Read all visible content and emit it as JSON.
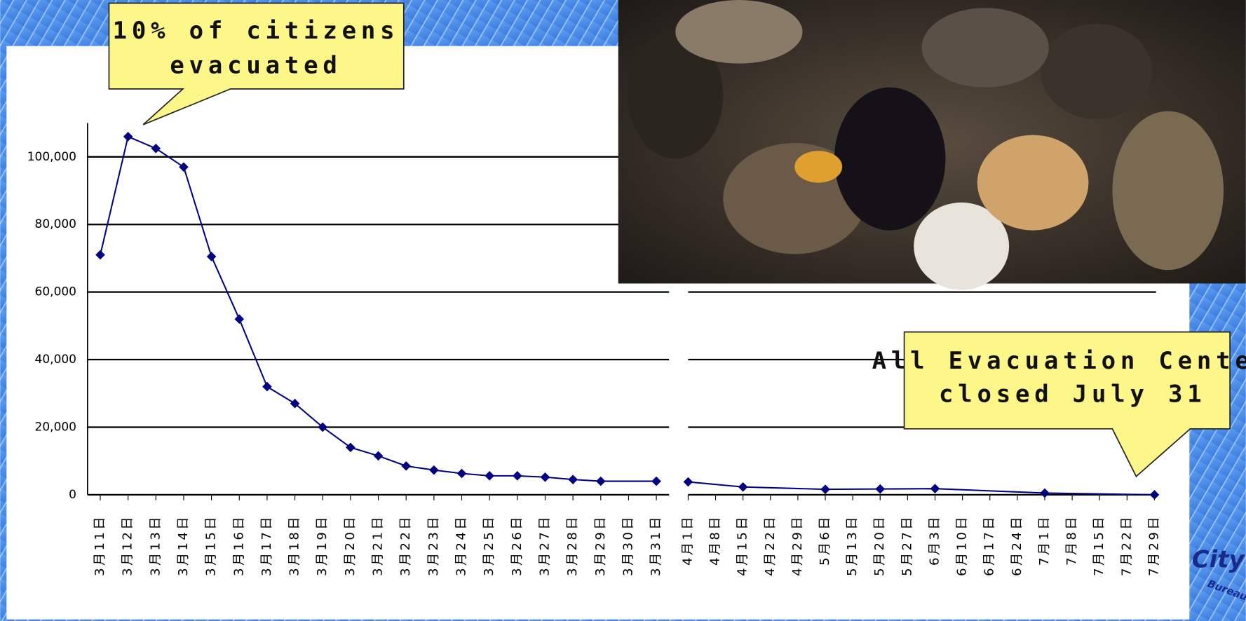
{
  "chart_data": [
    {
      "type": "line",
      "color": "#000080",
      "x": [
        11,
        12,
        13,
        14,
        15,
        16,
        17,
        18,
        19,
        20,
        21,
        22,
        23,
        24,
        25,
        26,
        27,
        28,
        29,
        31
      ],
      "values": [
        71000,
        106000,
        102500,
        97000,
        70500,
        52000,
        32000,
        27000,
        20000,
        14000,
        11500,
        8500,
        7300,
        6300,
        5600,
        5600,
        5200,
        4500,
        4000,
        4000
      ],
      "xlim": [
        11,
        31
      ],
      "xticks": [
        {
          "value": 11,
          "label": "3月11日"
        },
        {
          "value": 12,
          "label": "3月12日"
        },
        {
          "value": 13,
          "label": "3月13日"
        },
        {
          "value": 14,
          "label": "3月14日"
        },
        {
          "value": 15,
          "label": "3月15日"
        },
        {
          "value": 16,
          "label": "3月16日"
        },
        {
          "value": 17,
          "label": "3月17日"
        },
        {
          "value": 18,
          "label": "3月18日"
        },
        {
          "value": 19,
          "label": "3月19日"
        },
        {
          "value": 20,
          "label": "3月20日"
        },
        {
          "value": 21,
          "label": "3月21日"
        },
        {
          "value": 22,
          "label": "3月22日"
        },
        {
          "value": 23,
          "label": "3月23日"
        },
        {
          "value": 24,
          "label": "3月24日"
        },
        {
          "value": 25,
          "label": "3月25日"
        },
        {
          "value": 26,
          "label": "3月26日"
        },
        {
          "value": 27,
          "label": "3月27日"
        },
        {
          "value": 28,
          "label": "3月28日"
        },
        {
          "value": 29,
          "label": "3月29日"
        },
        {
          "value": 30,
          "label": "3月30日"
        },
        {
          "value": 31,
          "label": "3月31日"
        }
      ],
      "ylim": [
        0,
        110000
      ],
      "yticks": [
        0,
        {
          "value": 20000,
          "label": "20,000"
        },
        {
          "value": 40000,
          "label": "40,000"
        },
        {
          "value": 60000,
          "label": "60,000"
        },
        {
          "value": 80000,
          "label": "80,000"
        },
        {
          "value": 100000,
          "label": "100,000"
        }
      ],
      "grid": true
    },
    {
      "type": "line",
      "color": "#000080",
      "x": [
        0,
        14,
        35,
        49,
        63,
        91,
        119
      ],
      "values": [
        3800,
        2300,
        1600,
        1700,
        1800,
        500,
        0
      ],
      "xlim": [
        0,
        119
      ],
      "xticks": [
        {
          "value": 0,
          "label": "4月1日"
        },
        {
          "value": 7,
          "label": "4月8日"
        },
        {
          "value": 14,
          "label": "4月15日"
        },
        {
          "value": 21,
          "label": "4月22日"
        },
        {
          "value": 28,
          "label": "4月29日"
        },
        {
          "value": 35,
          "label": "5月6日"
        },
        {
          "value": 42,
          "label": "5月13日"
        },
        {
          "value": 49,
          "label": "5月20日"
        },
        {
          "value": 56,
          "label": "5月27日"
        },
        {
          "value": 63,
          "label": "6月3日"
        },
        {
          "value": 70,
          "label": "6月10日"
        },
        {
          "value": 77,
          "label": "6月17日"
        },
        {
          "value": 84,
          "label": "6月24日"
        },
        {
          "value": 91,
          "label": "7月1日"
        },
        {
          "value": 98,
          "label": "7月8日"
        },
        {
          "value": 105,
          "label": "7月15日"
        },
        {
          "value": 112,
          "label": "7月22日"
        },
        {
          "value": 119,
          "label": "7月29日"
        }
      ],
      "ylim": [
        0,
        110000
      ],
      "yticks": [
        0,
        20000,
        40000,
        60000,
        80000,
        100000
      ],
      "grid": true
    }
  ],
  "annotations": [
    {
      "lines": [
        "10% of citizens",
        "evacuated"
      ]
    },
    {
      "lines": [
        "All Evacuation Center",
        "closed July 31"
      ]
    }
  ],
  "logo": {
    "name": "City",
    "sub": "Bureau"
  }
}
